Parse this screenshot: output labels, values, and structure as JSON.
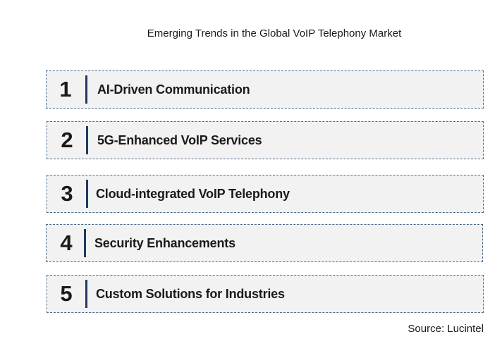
{
  "title": "Emerging Trends in the Global VoIP Telephony Market",
  "items": [
    {
      "number": "1",
      "label": "AI-Driven Communication"
    },
    {
      "number": "2",
      "label": "5G-Enhanced VoIP Services"
    },
    {
      "number": "3",
      "label": "Cloud-integrated VoIP Telephony"
    },
    {
      "number": "4",
      "label": "Security Enhancements"
    },
    {
      "number": "5",
      "label": "Custom Solutions for Industries"
    }
  ],
  "source": "Source: Lucintel",
  "colors": {
    "row_background": "#f2f2f2",
    "row_border": "#4a6b8a",
    "divider": "#1f3a5f",
    "text": "#1a1a1a"
  }
}
